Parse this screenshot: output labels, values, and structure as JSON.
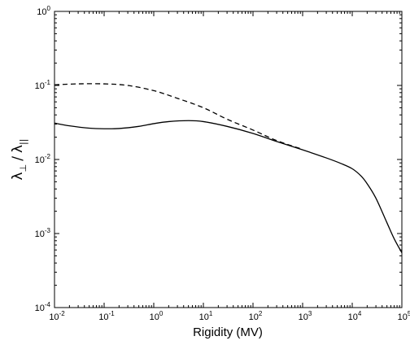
{
  "chart_data": {
    "type": "line",
    "xscale": "log",
    "yscale": "log",
    "xlim": [
      0.01,
      100000
    ],
    "ylim": [
      0.0001,
      1
    ],
    "xlabel": "Rigidity (MV)",
    "ylabel": {
      "symbol_top": "λ",
      "sub_top": "⊥",
      "separator": "/",
      "symbol_bottom": "λ",
      "sub_bottom": "||"
    },
    "xticks": [
      {
        "value": 0.01,
        "base": "10",
        "exp": "-2"
      },
      {
        "value": 0.1,
        "base": "10",
        "exp": "-1"
      },
      {
        "value": 1,
        "base": "10",
        "exp": "0"
      },
      {
        "value": 10,
        "base": "10",
        "exp": "1"
      },
      {
        "value": 100,
        "base": "10",
        "exp": "2"
      },
      {
        "value": 1000,
        "base": "10",
        "exp": "3"
      },
      {
        "value": 10000,
        "base": "10",
        "exp": "4"
      },
      {
        "value": 100000,
        "base": "10",
        "exp": "5"
      }
    ],
    "yticks": [
      {
        "value": 0.0001,
        "base": "10",
        "exp": "-4"
      },
      {
        "value": 0.001,
        "base": "10",
        "exp": "-3"
      },
      {
        "value": 0.01,
        "base": "10",
        "exp": "-2"
      },
      {
        "value": 0.1,
        "base": "10",
        "exp": "-1"
      },
      {
        "value": 1,
        "base": "10",
        "exp": "0"
      }
    ],
    "grid": false,
    "legend": "none",
    "series": [
      {
        "style": "solid",
        "color": "#000000",
        "points": [
          [
            0.01,
            0.031
          ],
          [
            0.02,
            0.0285
          ],
          [
            0.05,
            0.0265
          ],
          [
            0.1,
            0.026
          ],
          [
            0.2,
            0.0262
          ],
          [
            0.5,
            0.028
          ],
          [
            1,
            0.0305
          ],
          [
            2,
            0.0325
          ],
          [
            5,
            0.0335
          ],
          [
            10,
            0.0325
          ],
          [
            30,
            0.028
          ],
          [
            100,
            0.0225
          ],
          [
            300,
            0.0175
          ],
          [
            1000,
            0.0135
          ],
          [
            3000,
            0.0105
          ],
          [
            6000,
            0.0088
          ],
          [
            10000,
            0.0075
          ],
          [
            15000,
            0.006
          ],
          [
            20000,
            0.0047
          ],
          [
            30000,
            0.003
          ],
          [
            50000,
            0.0014
          ],
          [
            70000,
            0.00085
          ],
          [
            100000,
            0.00055
          ]
        ]
      },
      {
        "style": "dashed",
        "color": "#000000",
        "points": [
          [
            0.01,
            0.102
          ],
          [
            0.03,
            0.105
          ],
          [
            0.1,
            0.105
          ],
          [
            0.3,
            0.1
          ],
          [
            1,
            0.085
          ],
          [
            3,
            0.067
          ],
          [
            10,
            0.05
          ],
          [
            30,
            0.035
          ],
          [
            100,
            0.025
          ],
          [
            300,
            0.018
          ],
          [
            1000,
            0.0137
          ]
        ]
      }
    ]
  }
}
